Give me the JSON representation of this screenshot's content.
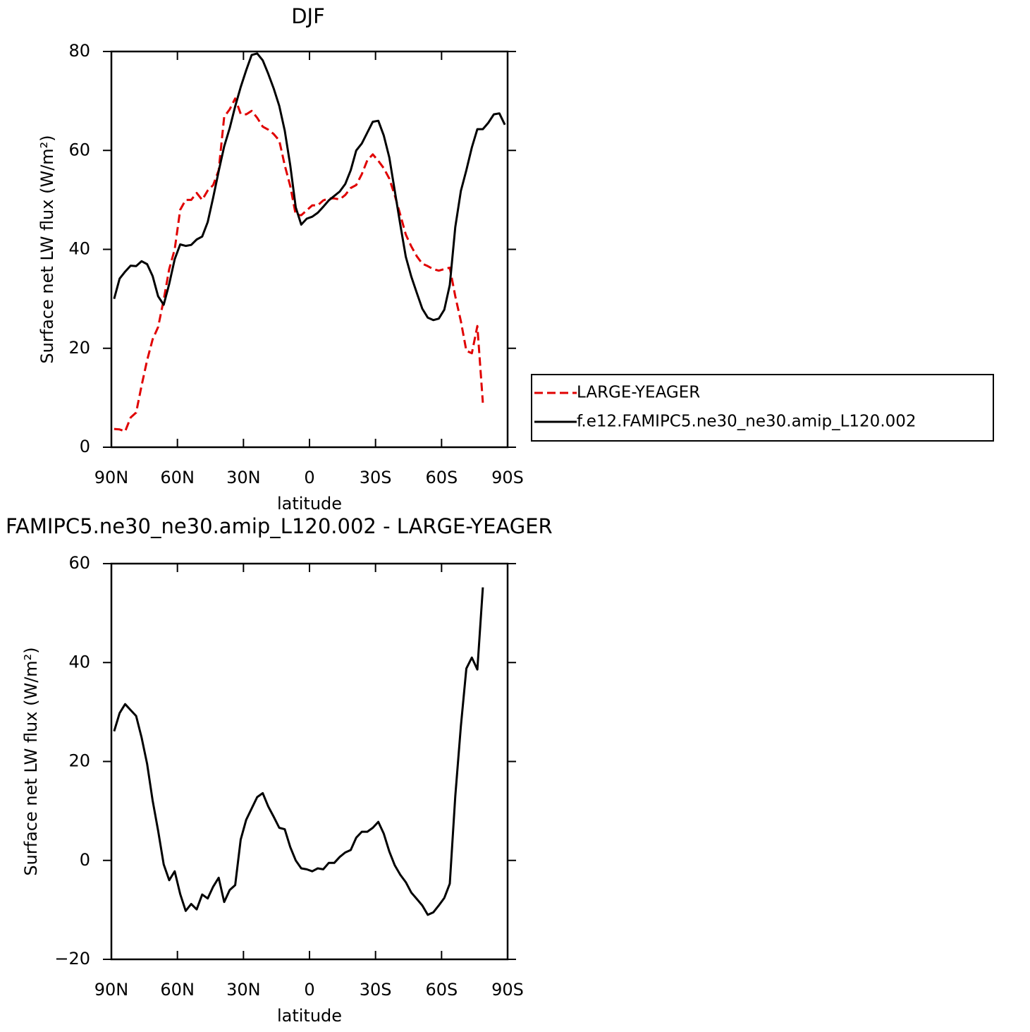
{
  "chart_data": [
    {
      "type": "line",
      "title": "DJF",
      "xlabel": "latitude",
      "ylabel": "Surface net LW flux (W/m²)",
      "x": [
        88.75,
        86.25,
        83.75,
        81.25,
        78.75,
        76.25,
        73.75,
        71.25,
        68.75,
        66.25,
        63.75,
        61.25,
        58.75,
        56.25,
        53.75,
        51.25,
        48.75,
        46.25,
        43.75,
        41.25,
        38.75,
        36.25,
        33.75,
        31.25,
        28.75,
        26.25,
        23.75,
        21.25,
        18.75,
        16.25,
        13.75,
        11.25,
        8.75,
        6.25,
        3.75,
        1.25,
        -1.25,
        -3.75,
        -6.25,
        -8.75,
        -11.25,
        -13.75,
        -16.25,
        -18.75,
        -21.25,
        -23.75,
        -26.25,
        -28.75,
        -31.25,
        -33.75,
        -36.25,
        -38.75,
        -41.25,
        -43.75,
        -46.25,
        -48.75,
        -51.25,
        -53.75,
        -56.25,
        -58.75,
        -61.25,
        -63.75,
        -66.25,
        -68.75,
        -71.25,
        -73.75,
        -76.25,
        -78.75,
        -81.25,
        -83.75,
        -86.25,
        -88.75
      ],
      "series": [
        {
          "name": "LARGE-YEAGER",
          "color": "#e00000",
          "line_style": "dashed",
          "values": [
            3.7,
            3.6,
            3.2,
            6.0,
            7.0,
            12.5,
            17.6,
            21.8,
            24.3,
            29.8,
            36.0,
            40.0,
            48.0,
            50.0,
            50.0,
            51.4,
            50.0,
            51.9,
            53.0,
            56.0,
            66.8,
            68.3,
            70.5,
            67.4,
            67.3,
            68.0,
            66.6,
            64.8,
            64.2,
            63.3,
            62.0,
            57.0,
            52.8,
            47.0,
            46.9,
            47.9,
            48.9,
            48.9,
            49.9,
            50.3,
            50.3,
            50.1,
            51.0,
            52.4,
            53.0,
            55.2,
            58.0,
            59.2,
            57.9,
            56.4,
            54.3,
            50.9,
            47.0,
            43.0,
            40.6,
            38.6,
            37.1,
            36.6,
            36.0,
            35.7,
            36.0,
            36.3,
            30.5,
            25.5,
            19.5,
            19.0,
            24.5,
            9.0,
            null,
            null,
            null,
            null
          ]
        },
        {
          "name": "f.e12.FAMIPC5.ne30_ne30.amip_L120.002",
          "color": "#000000",
          "line_style": "solid",
          "values": [
            30.0,
            34.1,
            35.5,
            36.7,
            36.6,
            37.6,
            37.0,
            34.6,
            30.5,
            28.8,
            33.0,
            38.0,
            41.0,
            40.7,
            40.9,
            42.0,
            42.6,
            45.5,
            50.5,
            55.8,
            60.8,
            64.5,
            68.9,
            72.8,
            76.2,
            79.3,
            79.6,
            78.2,
            75.5,
            72.5,
            69.0,
            64.0,
            57.0,
            48.5,
            45.0,
            46.2,
            46.6,
            47.4,
            48.6,
            49.9,
            50.8,
            51.7,
            53.2,
            56.0,
            60.0,
            61.4,
            63.6,
            65.8,
            66.0,
            63.0,
            58.6,
            51.8,
            45.0,
            38.5,
            34.5,
            31.2,
            28.0,
            26.2,
            25.7,
            26.0,
            27.8,
            32.8,
            44.5,
            51.8,
            56.0,
            60.6,
            64.3,
            64.3,
            65.6,
            67.3,
            67.5,
            65.2
          ]
        }
      ],
      "xlim": [
        90,
        -90
      ],
      "xticks": [
        {
          "value": 90,
          "label": "90N"
        },
        {
          "value": 60,
          "label": "60N"
        },
        {
          "value": 30,
          "label": "30N"
        },
        0,
        {
          "value": -30,
          "label": "30S"
        },
        {
          "value": -60,
          "label": "60S"
        },
        {
          "value": -90,
          "label": "90S"
        }
      ],
      "ylim": [
        0,
        80
      ],
      "yticks": [
        0,
        20,
        40,
        60,
        80
      ],
      "legend": "right"
    },
    {
      "type": "line",
      "title": "FAMIPC5.ne30_ne30.amip_L120.002 - LARGE-YEAGER",
      "xlabel": "latitude",
      "ylabel": "Surface net LW flux (W/m²)",
      "x": [
        88.75,
        86.25,
        83.75,
        81.25,
        78.75,
        76.25,
        73.75,
        71.25,
        68.75,
        66.25,
        63.75,
        61.25,
        58.75,
        56.25,
        53.75,
        51.25,
        48.75,
        46.25,
        43.75,
        41.25,
        38.75,
        36.25,
        33.75,
        31.25,
        28.75,
        26.25,
        23.75,
        21.25,
        18.75,
        16.25,
        13.75,
        11.25,
        8.75,
        6.25,
        3.75,
        1.25,
        -1.25,
        -3.75,
        -6.25,
        -8.75,
        -11.25,
        -13.75,
        -16.25,
        -18.75,
        -21.25,
        -23.75,
        -26.25,
        -28.75,
        -31.25,
        -33.75,
        -36.25,
        -38.75,
        -41.25,
        -43.75,
        -46.25,
        -48.75,
        -51.25,
        -53.75,
        -56.25,
        -58.75,
        -61.25,
        -63.75,
        -66.25,
        -68.75,
        -71.25,
        -73.75,
        -76.25,
        -78.75,
        -81.25,
        -83.75,
        -86.25,
        -88.75
      ],
      "color": "#000000",
      "values": [
        26.1,
        29.8,
        31.6,
        30.4,
        29.2,
        24.8,
        19.5,
        12.1,
        6.0,
        -0.8,
        -4.0,
        -2.2,
        -6.8,
        -10.2,
        -8.8,
        -9.9,
        -6.9,
        -7.7,
        -5.3,
        -3.5,
        -8.4,
        -6.0,
        -5.0,
        4.2,
        8.2,
        10.5,
        12.8,
        13.6,
        10.9,
        8.8,
        6.6,
        6.3,
        2.7,
        0.0,
        -1.6,
        -1.8,
        -2.2,
        -1.6,
        -1.8,
        -0.5,
        -0.5,
        0.7,
        1.6,
        2.1,
        4.6,
        5.8,
        5.8,
        6.6,
        7.8,
        5.4,
        1.8,
        -1.0,
        -2.9,
        -4.4,
        -6.5,
        -7.8,
        -9.1,
        -11.0,
        -10.5,
        -9.1,
        -7.6,
        -4.7,
        13.0,
        27.1,
        38.8,
        41.0,
        38.6,
        55.2,
        null,
        null,
        null,
        null
      ],
      "xlim": [
        90,
        -90
      ],
      "xticks": [
        {
          "value": 90,
          "label": "90N"
        },
        {
          "value": 60,
          "label": "60N"
        },
        {
          "value": 30,
          "label": "30N"
        },
        0,
        {
          "value": -30,
          "label": "30S"
        },
        {
          "value": -60,
          "label": "60S"
        },
        {
          "value": -90,
          "label": "90S"
        }
      ],
      "ylim": [
        -20,
        60
      ],
      "yticks": [
        {
          "value": -20,
          "label": "−20"
        },
        0,
        20,
        40,
        60
      ]
    }
  ]
}
